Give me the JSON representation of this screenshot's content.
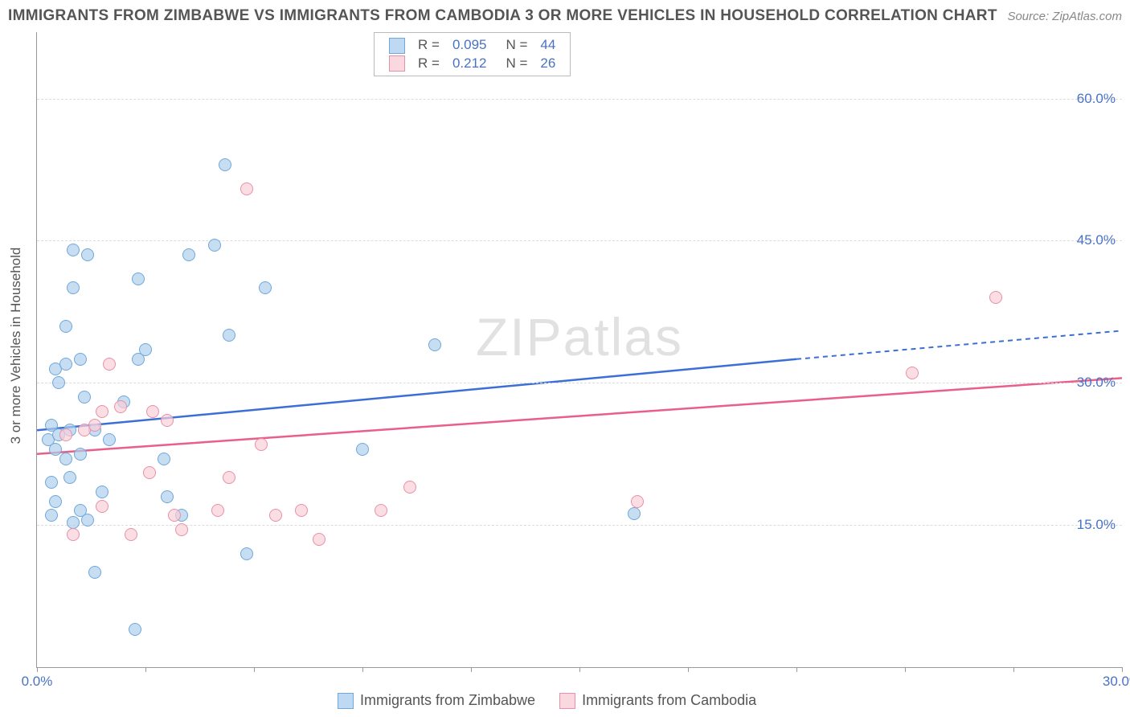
{
  "title": "IMMIGRANTS FROM ZIMBABWE VS IMMIGRANTS FROM CAMBODIA 3 OR MORE VEHICLES IN HOUSEHOLD CORRELATION CHART",
  "source": "Source: ZipAtlas.com",
  "y_axis_title": "3 or more Vehicles in Household",
  "watermark": "ZIPatlas",
  "chart": {
    "type": "scatter",
    "x_range": [
      0,
      30
    ],
    "y_range": [
      0,
      67
    ],
    "y_gridlines": [
      15,
      30,
      45,
      60
    ],
    "y_tick_labels": [
      "15.0%",
      "30.0%",
      "45.0%",
      "60.0%"
    ],
    "x_tick_positions": [
      0,
      15,
      30
    ],
    "x_tick_labels": [
      "0.0%",
      "",
      "30.0%"
    ],
    "x_minor_ticks": [
      3,
      6,
      9,
      12,
      18,
      21,
      24,
      27
    ],
    "background_color": "#ffffff",
    "grid_color": "#dcdcdc",
    "axis_color": "#999999",
    "series": [
      {
        "name": "Immigrants from Zimbabwe",
        "color_fill": "#aecfed",
        "color_stroke": "#6fa8dc",
        "trend_color": "#3b6fd6",
        "R": "0.095",
        "N": "44",
        "trend": {
          "x1": 0,
          "y1": 25.0,
          "x2": 21,
          "y2": 32.5,
          "dash_from_x": 21,
          "x3": 30,
          "y3": 35.5
        },
        "points": [
          [
            0.3,
            24
          ],
          [
            0.4,
            25.5
          ],
          [
            0.5,
            23
          ],
          [
            0.6,
            24.5
          ],
          [
            0.8,
            22
          ],
          [
            0.9,
            25
          ],
          [
            1.0,
            44
          ],
          [
            1.4,
            43.5
          ],
          [
            0.6,
            30
          ],
          [
            0.5,
            31.5
          ],
          [
            0.8,
            32
          ],
          [
            1.2,
            32.5
          ],
          [
            1.8,
            18.5
          ],
          [
            1.2,
            16.5
          ],
          [
            1.4,
            15.5
          ],
          [
            0.4,
            16
          ],
          [
            0.5,
            17.5
          ],
          [
            1.0,
            15.3
          ],
          [
            1.6,
            10
          ],
          [
            2.7,
            4
          ],
          [
            0.8,
            36
          ],
          [
            1.0,
            40
          ],
          [
            2.8,
            41
          ],
          [
            1.2,
            22.5
          ],
          [
            2.0,
            24
          ],
          [
            2.8,
            32.5
          ],
          [
            3.5,
            22
          ],
          [
            4.9,
            44.5
          ],
          [
            5.3,
            35
          ],
          [
            6.3,
            40
          ],
          [
            5.2,
            53
          ],
          [
            3.6,
            18
          ],
          [
            4.0,
            16
          ],
          [
            5.8,
            12
          ],
          [
            11.0,
            34
          ],
          [
            9.0,
            23
          ],
          [
            16.5,
            16.2
          ],
          [
            0.4,
            19.5
          ],
          [
            0.9,
            20
          ],
          [
            1.6,
            25
          ],
          [
            2.4,
            28
          ],
          [
            4.2,
            43.5
          ],
          [
            1.3,
            28.5
          ],
          [
            3.0,
            33.5
          ]
        ]
      },
      {
        "name": "Immigrants from Cambodia",
        "color_fill": "#f9ced8",
        "color_stroke": "#e890a8",
        "trend_color": "#e85f8a",
        "R": "0.212",
        "N": "26",
        "trend": {
          "x1": 0,
          "y1": 22.5,
          "x2": 30,
          "y2": 30.5
        },
        "points": [
          [
            0.8,
            24.5
          ],
          [
            1.3,
            25
          ],
          [
            1.6,
            25.5
          ],
          [
            1.8,
            27
          ],
          [
            2.3,
            27.5
          ],
          [
            3.2,
            27
          ],
          [
            3.6,
            26
          ],
          [
            3.1,
            20.5
          ],
          [
            1.8,
            17
          ],
          [
            1.0,
            14
          ],
          [
            2.6,
            14
          ],
          [
            3.8,
            16
          ],
          [
            4.0,
            14.5
          ],
          [
            5.0,
            16.5
          ],
          [
            5.3,
            20
          ],
          [
            6.2,
            23.5
          ],
          [
            6.6,
            16
          ],
          [
            7.3,
            16.5
          ],
          [
            9.5,
            16.5
          ],
          [
            7.8,
            13.5
          ],
          [
            10.3,
            19
          ],
          [
            16.6,
            17.5
          ],
          [
            24.2,
            31
          ],
          [
            26.5,
            39
          ],
          [
            5.8,
            50.5
          ],
          [
            2.0,
            32
          ]
        ]
      }
    ]
  },
  "legend_bottom": [
    {
      "color": "blue",
      "label": "Immigrants from Zimbabwe"
    },
    {
      "color": "pink",
      "label": "Immigrants from Cambodia"
    }
  ]
}
